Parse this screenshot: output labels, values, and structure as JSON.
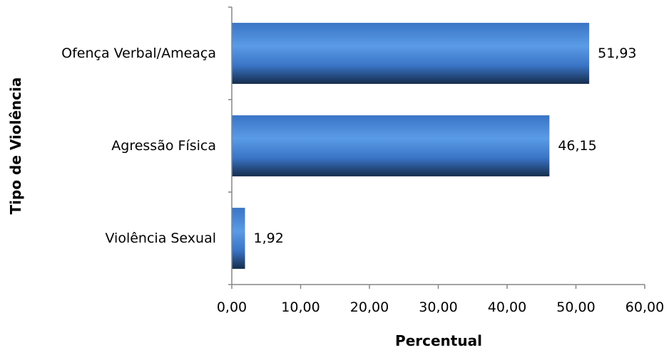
{
  "chart_data": {
    "type": "bar",
    "orientation": "horizontal",
    "categories": [
      "Ofença Verbal/Ameaça",
      "Agressão Física",
      "Violência Sexual"
    ],
    "values": [
      51.93,
      46.15,
      1.92
    ],
    "value_labels": [
      "51,93",
      "46,15",
      "1,92"
    ],
    "xlabel": "Percentual",
    "ylabel": "Tipo de Violência",
    "xlim": [
      0,
      60
    ],
    "x_ticks": [
      0,
      10,
      20,
      30,
      40,
      50,
      60
    ],
    "x_tick_labels": [
      "0,00",
      "10,00",
      "20,00",
      "30,00",
      "40,00",
      "50,00",
      "60,00"
    ],
    "grid": false,
    "legend": "none",
    "colors": {
      "bar_light": "#5a9be6",
      "bar_mid": "#3a74c6",
      "bar_dark": "#152c4c",
      "axis": "#868686"
    }
  }
}
